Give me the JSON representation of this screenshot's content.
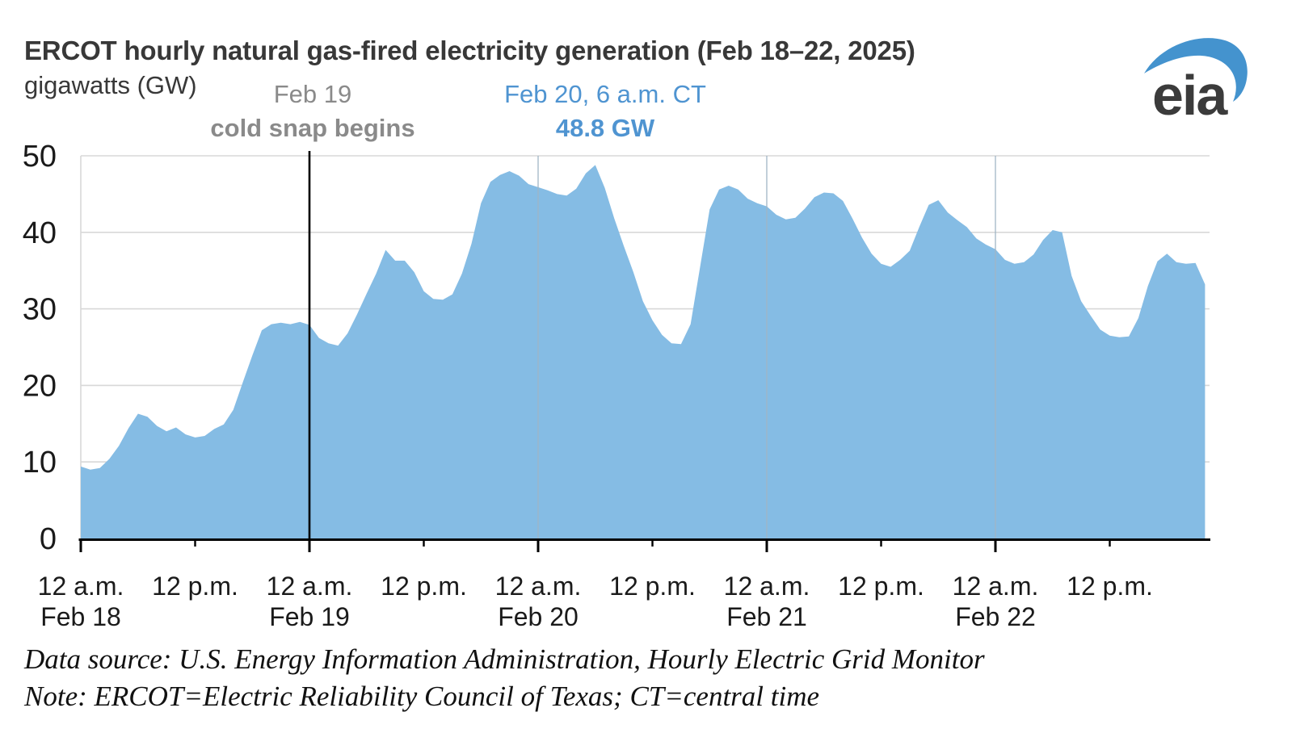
{
  "header": {
    "title": "ERCOT hourly natural gas-fired electricity generation (Feb 18–22, 2025)",
    "unit_label": "gigawatts (GW)",
    "logo_text": "eia"
  },
  "annotations": {
    "cold_snap": {
      "line1": "Feb 19",
      "line2": "cold snap begins"
    },
    "peak": {
      "line1": "Feb 20, 6 a.m. CT",
      "line2": "48.8 GW"
    }
  },
  "footer": {
    "line1": "Data source: U.S. Energy Information Administration, Hourly Electric Grid Monitor",
    "line2": "Note: ERCOT=Electric Reliability Council of Texas; CT=central time"
  },
  "colors": {
    "area_fill": "#85BCE4",
    "grid": "#D8D8D8",
    "vertical_grid_over_area": "#9FB4C4",
    "axis": "#000000",
    "event_line": "#000000",
    "tick_label": "#1a1a1a",
    "annotation_gray": "#8A8A8A",
    "annotation_blue": "#4F94D1",
    "title_text": "#383838",
    "logo_blue": "#4493CE",
    "logo_text": "#3B3B3B"
  },
  "chart_data": {
    "type": "area",
    "title": "ERCOT hourly natural gas-fired electricity generation (Feb 18–22, 2025)",
    "xlabel": "",
    "ylabel": "gigawatts (GW)",
    "ylim": [
      0,
      50
    ],
    "y_ticks": [
      0,
      10,
      20,
      30,
      40,
      50
    ],
    "grid": "horizontal gray lines each 10 GW; light vertical line at each midnight",
    "legend_position": "none",
    "x_start": "Feb 18, 2025, 12 a.m. CT",
    "interval_hours": 1,
    "x_ticks": [
      {
        "time": "12 a.m.",
        "day": "Feb 18"
      },
      {
        "time": "12 p.m."
      },
      {
        "time": "12 a.m.",
        "day": "Feb 19"
      },
      {
        "time": "12 p.m."
      },
      {
        "time": "12 a.m.",
        "day": "Feb 20"
      },
      {
        "time": "12 p.m."
      },
      {
        "time": "12 a.m.",
        "day": "Feb 21"
      },
      {
        "time": "12 p.m."
      },
      {
        "time": "12 a.m.",
        "day": "Feb 22"
      },
      {
        "time": "12 p.m."
      }
    ],
    "event_line": {
      "hour_index": 24,
      "at": "Feb 19, 12 a.m.",
      "label": "cold snap begins"
    },
    "peak_point": {
      "hour_index": 54,
      "at": "Feb 20, 6 a.m. CT",
      "value_gw": 48.8
    },
    "day_order": [
      "Feb 18",
      "Feb 19",
      "Feb 20",
      "Feb 21",
      "Feb 22"
    ],
    "series_name": "ERCOT natural gas-fired generation (GW)",
    "values_by_day": {
      "Feb 18": [
        9.4,
        9.0,
        9.2,
        10.4,
        12.1,
        14.4,
        16.3,
        15.9,
        14.7,
        14.0,
        14.5,
        13.6,
        13.2,
        13.4,
        14.3,
        14.9,
        16.8,
        20.4,
        23.9,
        27.2,
        28.0,
        28.2,
        28.0,
        28.3
      ],
      "Feb 19": [
        27.9,
        26.2,
        25.5,
        25.2,
        26.8,
        29.3,
        32.0,
        34.6,
        37.7,
        36.3,
        36.3,
        34.8,
        32.3,
        31.3,
        31.2,
        31.9,
        34.6,
        38.5,
        43.8,
        46.6,
        47.5,
        48.0,
        47.4,
        46.3
      ],
      "Feb 20": [
        45.9,
        45.5,
        45.0,
        44.8,
        45.7,
        47.7,
        48.8,
        45.8,
        41.8,
        38.2,
        34.8,
        31.0,
        28.5,
        26.6,
        25.5,
        25.4,
        28.0,
        35.5,
        43.0,
        45.6,
        46.1,
        45.6,
        44.4,
        43.8
      ],
      "Feb 21": [
        43.4,
        42.3,
        41.7,
        41.9,
        43.1,
        44.6,
        45.2,
        45.1,
        44.1,
        41.8,
        39.3,
        37.2,
        35.9,
        35.5,
        36.4,
        37.6,
        40.7,
        43.6,
        44.2,
        42.6,
        41.6,
        40.7,
        39.2,
        38.4
      ],
      "Feb 22": [
        37.8,
        36.4,
        35.9,
        36.1,
        37.1,
        39.0,
        40.3,
        40.0,
        34.3,
        31.0,
        29.1,
        27.3,
        26.5,
        26.3,
        26.4,
        28.8,
        33.0,
        36.2,
        37.2,
        36.1,
        35.9,
        36.0,
        33.2
      ]
    }
  }
}
